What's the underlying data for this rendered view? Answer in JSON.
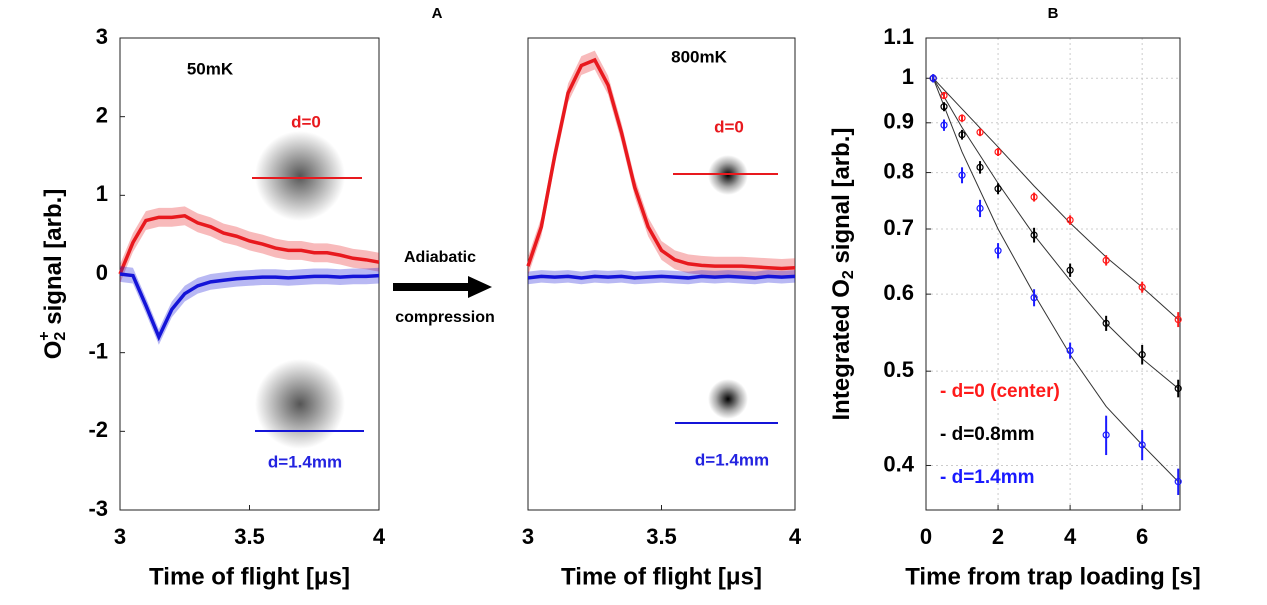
{
  "chart_data": [
    {
      "type": "line",
      "title": "A",
      "annotations": [
        "50mK",
        "d=0",
        "d=1.4mm"
      ],
      "ylabel_parts": [
        "O",
        "2",
        "+",
        " signal [arb.]"
      ],
      "xlabel": "Time of flight [μs]",
      "x": [
        3,
        3.05,
        3.1,
        3.15,
        3.2,
        3.25,
        3.3,
        3.35,
        3.4,
        3.45,
        3.5,
        3.55,
        3.6,
        3.65,
        3.7,
        3.75,
        3.8,
        3.85,
        3.9,
        3.95,
        4
      ],
      "series": [
        {
          "color": "#e8191e",
          "band": 0.12,
          "values": [
            0,
            0.4,
            0.68,
            0.72,
            0.72,
            0.74,
            0.65,
            0.6,
            0.52,
            0.48,
            0.42,
            0.38,
            0.33,
            0.3,
            0.3,
            0.27,
            0.27,
            0.24,
            0.2,
            0.18,
            0.15
          ]
        },
        {
          "color": "#1414d8",
          "band": 0.1,
          "values": [
            0,
            -0.02,
            -0.4,
            -0.8,
            -0.45,
            -0.25,
            -0.15,
            -0.1,
            -0.08,
            -0.06,
            -0.05,
            -0.04,
            -0.04,
            -0.05,
            -0.04,
            -0.03,
            -0.03,
            -0.04,
            -0.03,
            -0.03,
            -0.02
          ]
        }
      ],
      "xlim": [
        3,
        4
      ],
      "xticks": [
        3,
        3.5,
        4
      ],
      "ylim": [
        -3,
        3
      ],
      "yticks": [
        -3,
        -2,
        -1,
        0,
        1,
        2,
        3
      ]
    },
    {
      "type": "line",
      "annotations": [
        "800mK",
        "d=0",
        "d=1.4mm"
      ],
      "xlabel": "Time of flight [μs]",
      "x": [
        3,
        3.05,
        3.1,
        3.15,
        3.2,
        3.25,
        3.3,
        3.35,
        3.4,
        3.45,
        3.5,
        3.55,
        3.6,
        3.65,
        3.7,
        3.75,
        3.8,
        3.85,
        3.9,
        3.95,
        4
      ],
      "series": [
        {
          "color": "#e8191e",
          "band": 0.12,
          "values": [
            0.1,
            0.6,
            1.5,
            2.3,
            2.65,
            2.72,
            2.4,
            1.8,
            1.1,
            0.6,
            0.3,
            0.18,
            0.13,
            0.11,
            0.1,
            0.1,
            0.1,
            0.09,
            0.08,
            0.07,
            0.08
          ]
        },
        {
          "color": "#1414d8",
          "band": 0.08,
          "values": [
            -0.05,
            -0.03,
            -0.04,
            -0.03,
            -0.05,
            -0.03,
            -0.04,
            -0.03,
            -0.05,
            -0.04,
            -0.03,
            -0.04,
            -0.05,
            -0.03,
            -0.04,
            -0.03,
            -0.04,
            -0.05,
            -0.03,
            -0.04,
            -0.03
          ]
        }
      ],
      "xlim": [
        3,
        4
      ],
      "xticks": [
        3,
        3.5,
        4
      ],
      "ylim": [
        -3,
        3
      ]
    },
    {
      "type": "scatter",
      "title": "B",
      "ylabel_parts": [
        "Integrated O",
        "2",
        " signal [arb.]"
      ],
      "xlabel": "Time from trap loading [s]",
      "ylog": true,
      "grid": true,
      "x": [
        0.2,
        0.5,
        1,
        1.5,
        2,
        3,
        4,
        5,
        6,
        7
      ],
      "series": [
        {
          "name": "- d=0 (center)",
          "color": "#ff1a1a",
          "values": [
            1,
            0.96,
            0.91,
            0.88,
            0.84,
            0.755,
            0.715,
            0.65,
            0.61,
            0.565
          ],
          "errors": [
            0.008,
            0.008,
            0.008,
            0.008,
            0.008,
            0.008,
            0.008,
            0.008,
            0.008,
            0.01
          ]
        },
        {
          "name": "- d=0.8mm",
          "color": "#000000",
          "values": [
            1,
            0.935,
            0.875,
            0.81,
            0.77,
            0.69,
            0.635,
            0.56,
            0.52,
            0.48
          ],
          "errors": [
            0.008,
            0.01,
            0.01,
            0.012,
            0.01,
            0.012,
            0.01,
            0.01,
            0.012,
            0.01
          ]
        },
        {
          "name": "- d=1.4mm",
          "color": "#1a1aff",
          "values": [
            1,
            0.895,
            0.795,
            0.735,
            0.665,
            0.595,
            0.525,
            0.43,
            0.42,
            0.385
          ],
          "errors": [
            0.01,
            0.012,
            0.015,
            0.015,
            0.012,
            0.012,
            0.01,
            0.02,
            0.015,
            0.012
          ]
        }
      ],
      "fits": [
        {
          "x": [
            0.2,
            1,
            2,
            3,
            4,
            5,
            6,
            7
          ],
          "values": [
            1,
            0.93,
            0.85,
            0.775,
            0.71,
            0.655,
            0.61,
            0.565
          ]
        },
        {
          "x": [
            0.2,
            1,
            2,
            3,
            4,
            5,
            6,
            7
          ],
          "values": [
            1,
            0.89,
            0.78,
            0.69,
            0.62,
            0.56,
            0.515,
            0.48
          ]
        },
        {
          "x": [
            0.2,
            1,
            2,
            3,
            4,
            5,
            6,
            7
          ],
          "values": [
            1,
            0.84,
            0.7,
            0.6,
            0.52,
            0.46,
            0.42,
            0.385
          ]
        }
      ],
      "xlim": [
        0,
        7.05
      ],
      "xticks": [
        0,
        2,
        4,
        6
      ],
      "ylim": [
        0.36,
        1.1
      ],
      "yticks": [
        0.4,
        0.5,
        0.6,
        0.7,
        0.8,
        0.9,
        1,
        1.1
      ]
    }
  ],
  "arrow_text": [
    "Adiabatic",
    "compression"
  ]
}
